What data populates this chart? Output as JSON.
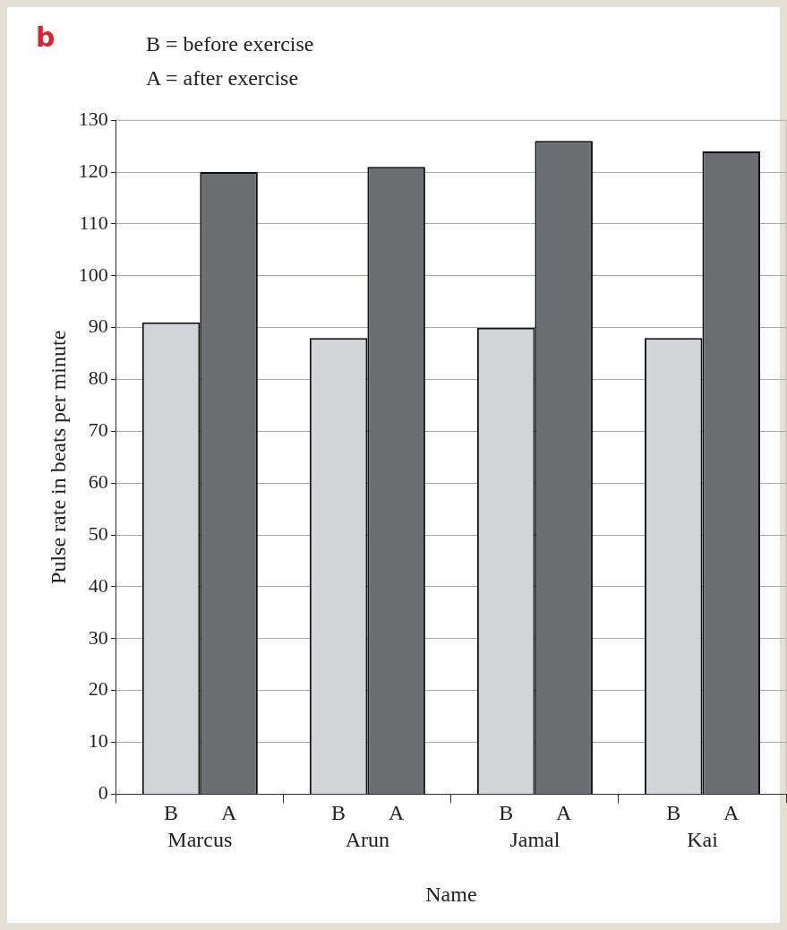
{
  "chart_data": {
    "type": "bar",
    "title": "b",
    "annotations": [
      "B = before exercise",
      "A = after exercise"
    ],
    "xlabel": "Name",
    "ylabel": "Pulse rate in beats per minute",
    "categories": [
      "Marcus",
      "Arun",
      "Jamal",
      "Kai"
    ],
    "series": [
      {
        "name": "B",
        "color": "#d3d4d7",
        "values": [
          91,
          88,
          90,
          88
        ]
      },
      {
        "name": "A",
        "color": "#6c6d71",
        "values": [
          120,
          121,
          126,
          124
        ]
      }
    ],
    "ylim": [
      0,
      130
    ],
    "yticks": [
      0,
      10,
      20,
      30,
      40,
      50,
      60,
      70,
      80,
      90,
      100,
      110,
      120,
      130
    ],
    "grid": "y"
  }
}
